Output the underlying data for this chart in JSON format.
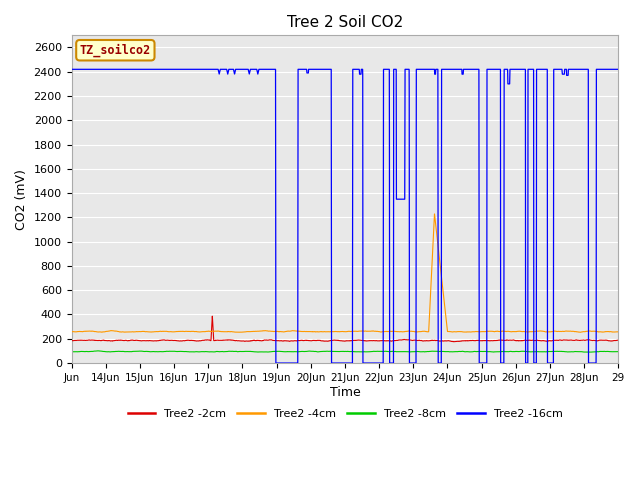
{
  "title": "Tree 2 Soil CO2",
  "xlabel": "Time",
  "ylabel": "CO2 (mV)",
  "ylim": [
    0,
    2700
  ],
  "background_color": "#e8e8e8",
  "grid_color": "#ffffff",
  "annotation_label": "TZ_soilco2",
  "annotation_box_color": "#ffffcc",
  "annotation_box_edge": "#cc8800",
  "annotation_text_color": "#990000",
  "series_red_label": "Tree2 -2cm",
  "series_red_color": "#dd0000",
  "series_orange_label": "Tree2 -4cm",
  "series_orange_color": "#ff9900",
  "series_green_label": "Tree2 -8cm",
  "series_green_color": "#00cc00",
  "series_blue_label": "Tree2 -16cm",
  "series_blue_color": "#0000ff",
  "tick_positions": [
    13,
    14,
    15,
    16,
    17,
    18,
    19,
    20,
    21,
    22,
    23,
    24,
    25,
    26,
    27,
    28,
    29
  ],
  "tick_labels": [
    "Jun",
    "14Jun",
    "15Jun",
    "16Jun",
    "17Jun",
    "18Jun",
    "19Jun",
    "20Jun",
    "21Jun",
    "22Jun",
    "23Jun",
    "24Jun",
    "25Jun",
    "26Jun",
    "27Jun",
    "28Jun",
    "29"
  ],
  "xlim": [
    13,
    29
  ]
}
